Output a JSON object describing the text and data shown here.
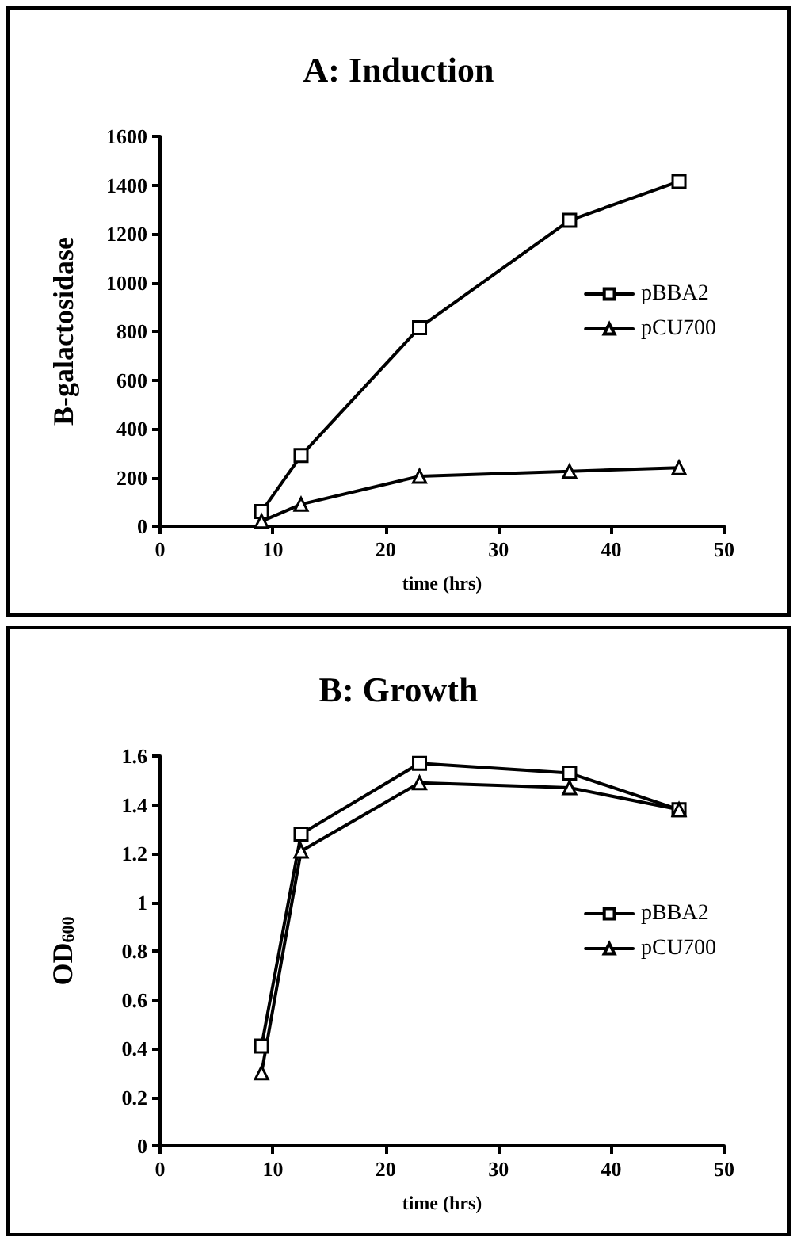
{
  "chart_data": [
    {
      "type": "line",
      "title": "A: Induction",
      "xlabel": "time (hrs)",
      "ylabel": "B-galactosidase",
      "x": [
        9,
        12.5,
        23,
        36.3,
        46
      ],
      "series": [
        {
          "name": "pBBA2",
          "color": "#000000",
          "marker": "square",
          "values": [
            60,
            290,
            815,
            1255,
            1415
          ]
        },
        {
          "name": "pCU700",
          "color": "#000000",
          "marker": "triangle",
          "values": [
            20,
            90,
            205,
            225,
            240
          ]
        }
      ],
      "xlim": [
        0,
        50
      ],
      "xticks": [
        0,
        10,
        20,
        30,
        40,
        50
      ],
      "ylim": [
        0,
        1600
      ],
      "yticks": [
        0,
        200,
        400,
        600,
        800,
        1000,
        1200,
        1400,
        1600
      ],
      "grid": false,
      "legend": "right",
      "line_style": "solid"
    },
    {
      "type": "line",
      "title": "B: Growth",
      "xlabel": "time (hrs)",
      "ylabel": "OD$_{600}$",
      "x": [
        9,
        12.5,
        23,
        36.3,
        46
      ],
      "series": [
        {
          "name": "pBBA2",
          "color": "#000000",
          "marker": "square",
          "values": [
            0.41,
            1.28,
            1.57,
            1.53,
            1.38
          ]
        },
        {
          "name": "pCU700",
          "color": "#000000",
          "marker": "triangle",
          "values": [
            0.3,
            1.21,
            1.49,
            1.47,
            1.38
          ]
        }
      ],
      "xlim": [
        0,
        50
      ],
      "xticks": [
        0,
        10,
        20,
        30,
        40,
        50
      ],
      "ylim": [
        0,
        1.6
      ],
      "yticks": [
        0,
        0.2,
        0.4,
        0.6,
        0.8,
        1,
        1.2,
        1.4,
        1.6
      ],
      "grid": false,
      "legend": "right",
      "line_style": "solid"
    }
  ]
}
